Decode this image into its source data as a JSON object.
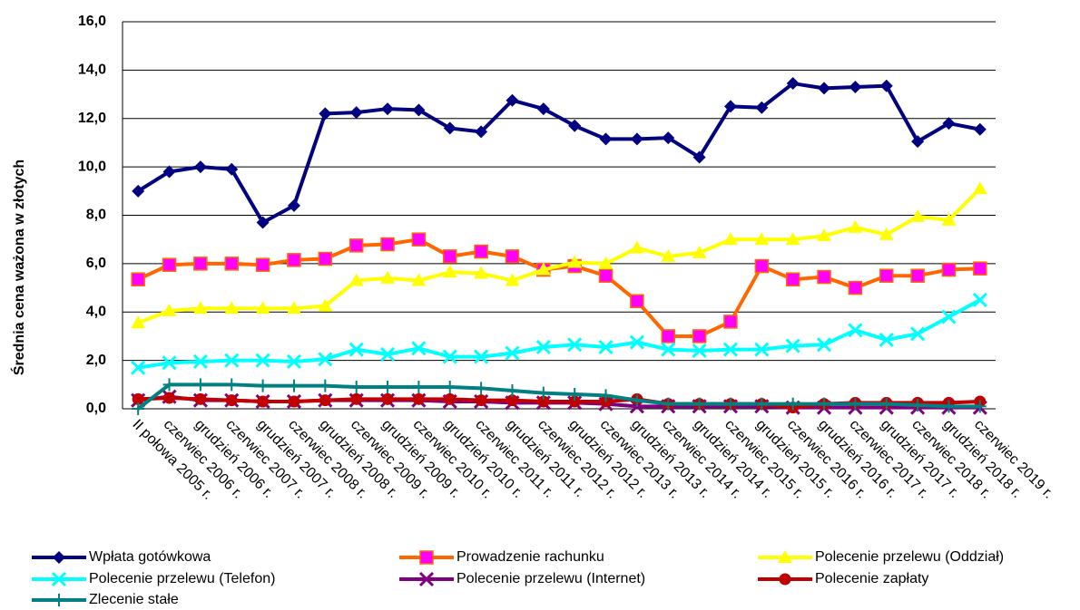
{
  "chart_data": {
    "type": "line",
    "y_label": "Średnia cena ważona w złotych",
    "categories": [
      "II połowa 2005 r.",
      "czerwiec 2006 r.",
      "grudzień 2006 r.",
      "czerwiec 2007 r.",
      "grudzień 2007 r.",
      "czerwiec 2008 r.",
      "grudzień 2008 r.",
      "czerwiec 2009 r.",
      "grudzień 2009 r.",
      "czerwiec 2010 r.",
      "grudzień 2010 r.",
      "czerwiec 2011 r.",
      "grudzień 2011 r.",
      "czerwiec 2012 r.",
      "grudzień 2012 r.",
      "czerwiec 2013 r.",
      "grudzień 2013 r.",
      "czerwiec 2014 r.",
      "grudzień 2014 r.",
      "czerwiec 2015 r.",
      "grudzień 2015 r.",
      "czerwiec 2016 r.",
      "grudzień 2016 r.",
      "czerwiec 2017 r.",
      "grudzień 2017 r.",
      "czerwiec 2018 r.",
      "grudzień 2018 r.",
      "czerwiec 2019 r."
    ],
    "ylim": [
      0,
      16
    ],
    "yticks": [
      {
        "value": 0,
        "label": "0,0"
      },
      {
        "value": 2,
        "label": "2,0"
      },
      {
        "value": 4,
        "label": "4,0"
      },
      {
        "value": 6,
        "label": "6,0"
      },
      {
        "value": 8,
        "label": "8,0"
      },
      {
        "value": 10,
        "label": "10,0"
      },
      {
        "value": 12,
        "label": "12,0"
      },
      {
        "value": 14,
        "label": "14,0"
      },
      {
        "value": 16,
        "label": "16,0"
      }
    ],
    "grid": true,
    "legend": "bottom",
    "series": [
      {
        "name": "Wpłata gotówkowa",
        "color": "#000080",
        "marker": "diamond",
        "values": [
          9.0,
          9.8,
          10.0,
          9.9,
          7.7,
          8.4,
          12.2,
          12.25,
          12.4,
          12.35,
          11.6,
          11.45,
          12.75,
          12.4,
          11.7,
          11.15,
          11.15,
          11.2,
          10.4,
          12.5,
          12.45,
          13.45,
          13.25,
          13.3,
          13.35,
          11.05,
          11.8,
          11.55
        ]
      },
      {
        "name": "Prowadzenie rachunku",
        "color": "#ff6600",
        "marker": "square",
        "marker_color": "#ff00ff",
        "values": [
          5.35,
          5.95,
          6.0,
          6.0,
          5.95,
          6.15,
          6.2,
          6.75,
          6.8,
          7.0,
          6.3,
          6.5,
          6.3,
          5.75,
          5.9,
          5.5,
          4.45,
          3.0,
          3.0,
          3.6,
          5.9,
          5.35,
          5.45,
          5.0,
          5.5,
          5.5,
          5.75,
          5.8
        ]
      },
      {
        "name": "Polecenie przelewu (Oddział)",
        "color": "#ffff00",
        "marker": "triangle",
        "values": [
          3.55,
          4.05,
          4.15,
          4.15,
          4.15,
          4.15,
          4.25,
          5.3,
          5.4,
          5.3,
          5.65,
          5.6,
          5.3,
          5.75,
          6.05,
          6.0,
          6.65,
          6.3,
          6.45,
          7.0,
          7.0,
          7.0,
          7.15,
          7.5,
          7.2,
          7.95,
          7.8,
          9.1
        ]
      },
      {
        "name": "Polecenie przelewu (Telefon)",
        "color": "#00ffff",
        "marker": "x",
        "values": [
          1.7,
          1.9,
          1.95,
          2.0,
          2.0,
          1.95,
          2.05,
          2.45,
          2.25,
          2.5,
          2.15,
          2.15,
          2.3,
          2.55,
          2.65,
          2.55,
          2.75,
          2.45,
          2.4,
          2.45,
          2.45,
          2.6,
          2.65,
          3.25,
          2.85,
          3.1,
          3.8,
          4.5
        ]
      },
      {
        "name": "Polecenie przelewu (Internet)",
        "color": "#800080",
        "marker": "x",
        "values": [
          0.35,
          0.5,
          0.35,
          0.35,
          0.3,
          0.3,
          0.35,
          0.35,
          0.35,
          0.35,
          0.3,
          0.3,
          0.25,
          0.25,
          0.25,
          0.2,
          0.1,
          0.1,
          0.1,
          0.1,
          0.1,
          0.05,
          0.05,
          0.05,
          0.05,
          0.05,
          0.05,
          0.05
        ]
      },
      {
        "name": "Polecenie zapłaty",
        "color": "#c00000",
        "marker": "circle",
        "values": [
          0.4,
          0.45,
          0.4,
          0.35,
          0.3,
          0.3,
          0.35,
          0.4,
          0.4,
          0.4,
          0.4,
          0.35,
          0.35,
          0.3,
          0.3,
          0.3,
          0.4,
          0.2,
          0.2,
          0.2,
          0.2,
          0.05,
          0.2,
          0.25,
          0.25,
          0.25,
          0.25,
          0.3
        ]
      },
      {
        "name": "Zlecenie stałe",
        "color": "#008080",
        "marker": "plus",
        "values": [
          0.0,
          1.0,
          1.0,
          1.0,
          0.95,
          0.95,
          0.95,
          0.9,
          0.9,
          0.9,
          0.9,
          0.85,
          0.75,
          0.65,
          0.6,
          0.55,
          0.35,
          0.2,
          0.2,
          0.2,
          0.2,
          0.2,
          0.2,
          0.2,
          0.2,
          0.15,
          0.1,
          0.1
        ]
      }
    ]
  }
}
